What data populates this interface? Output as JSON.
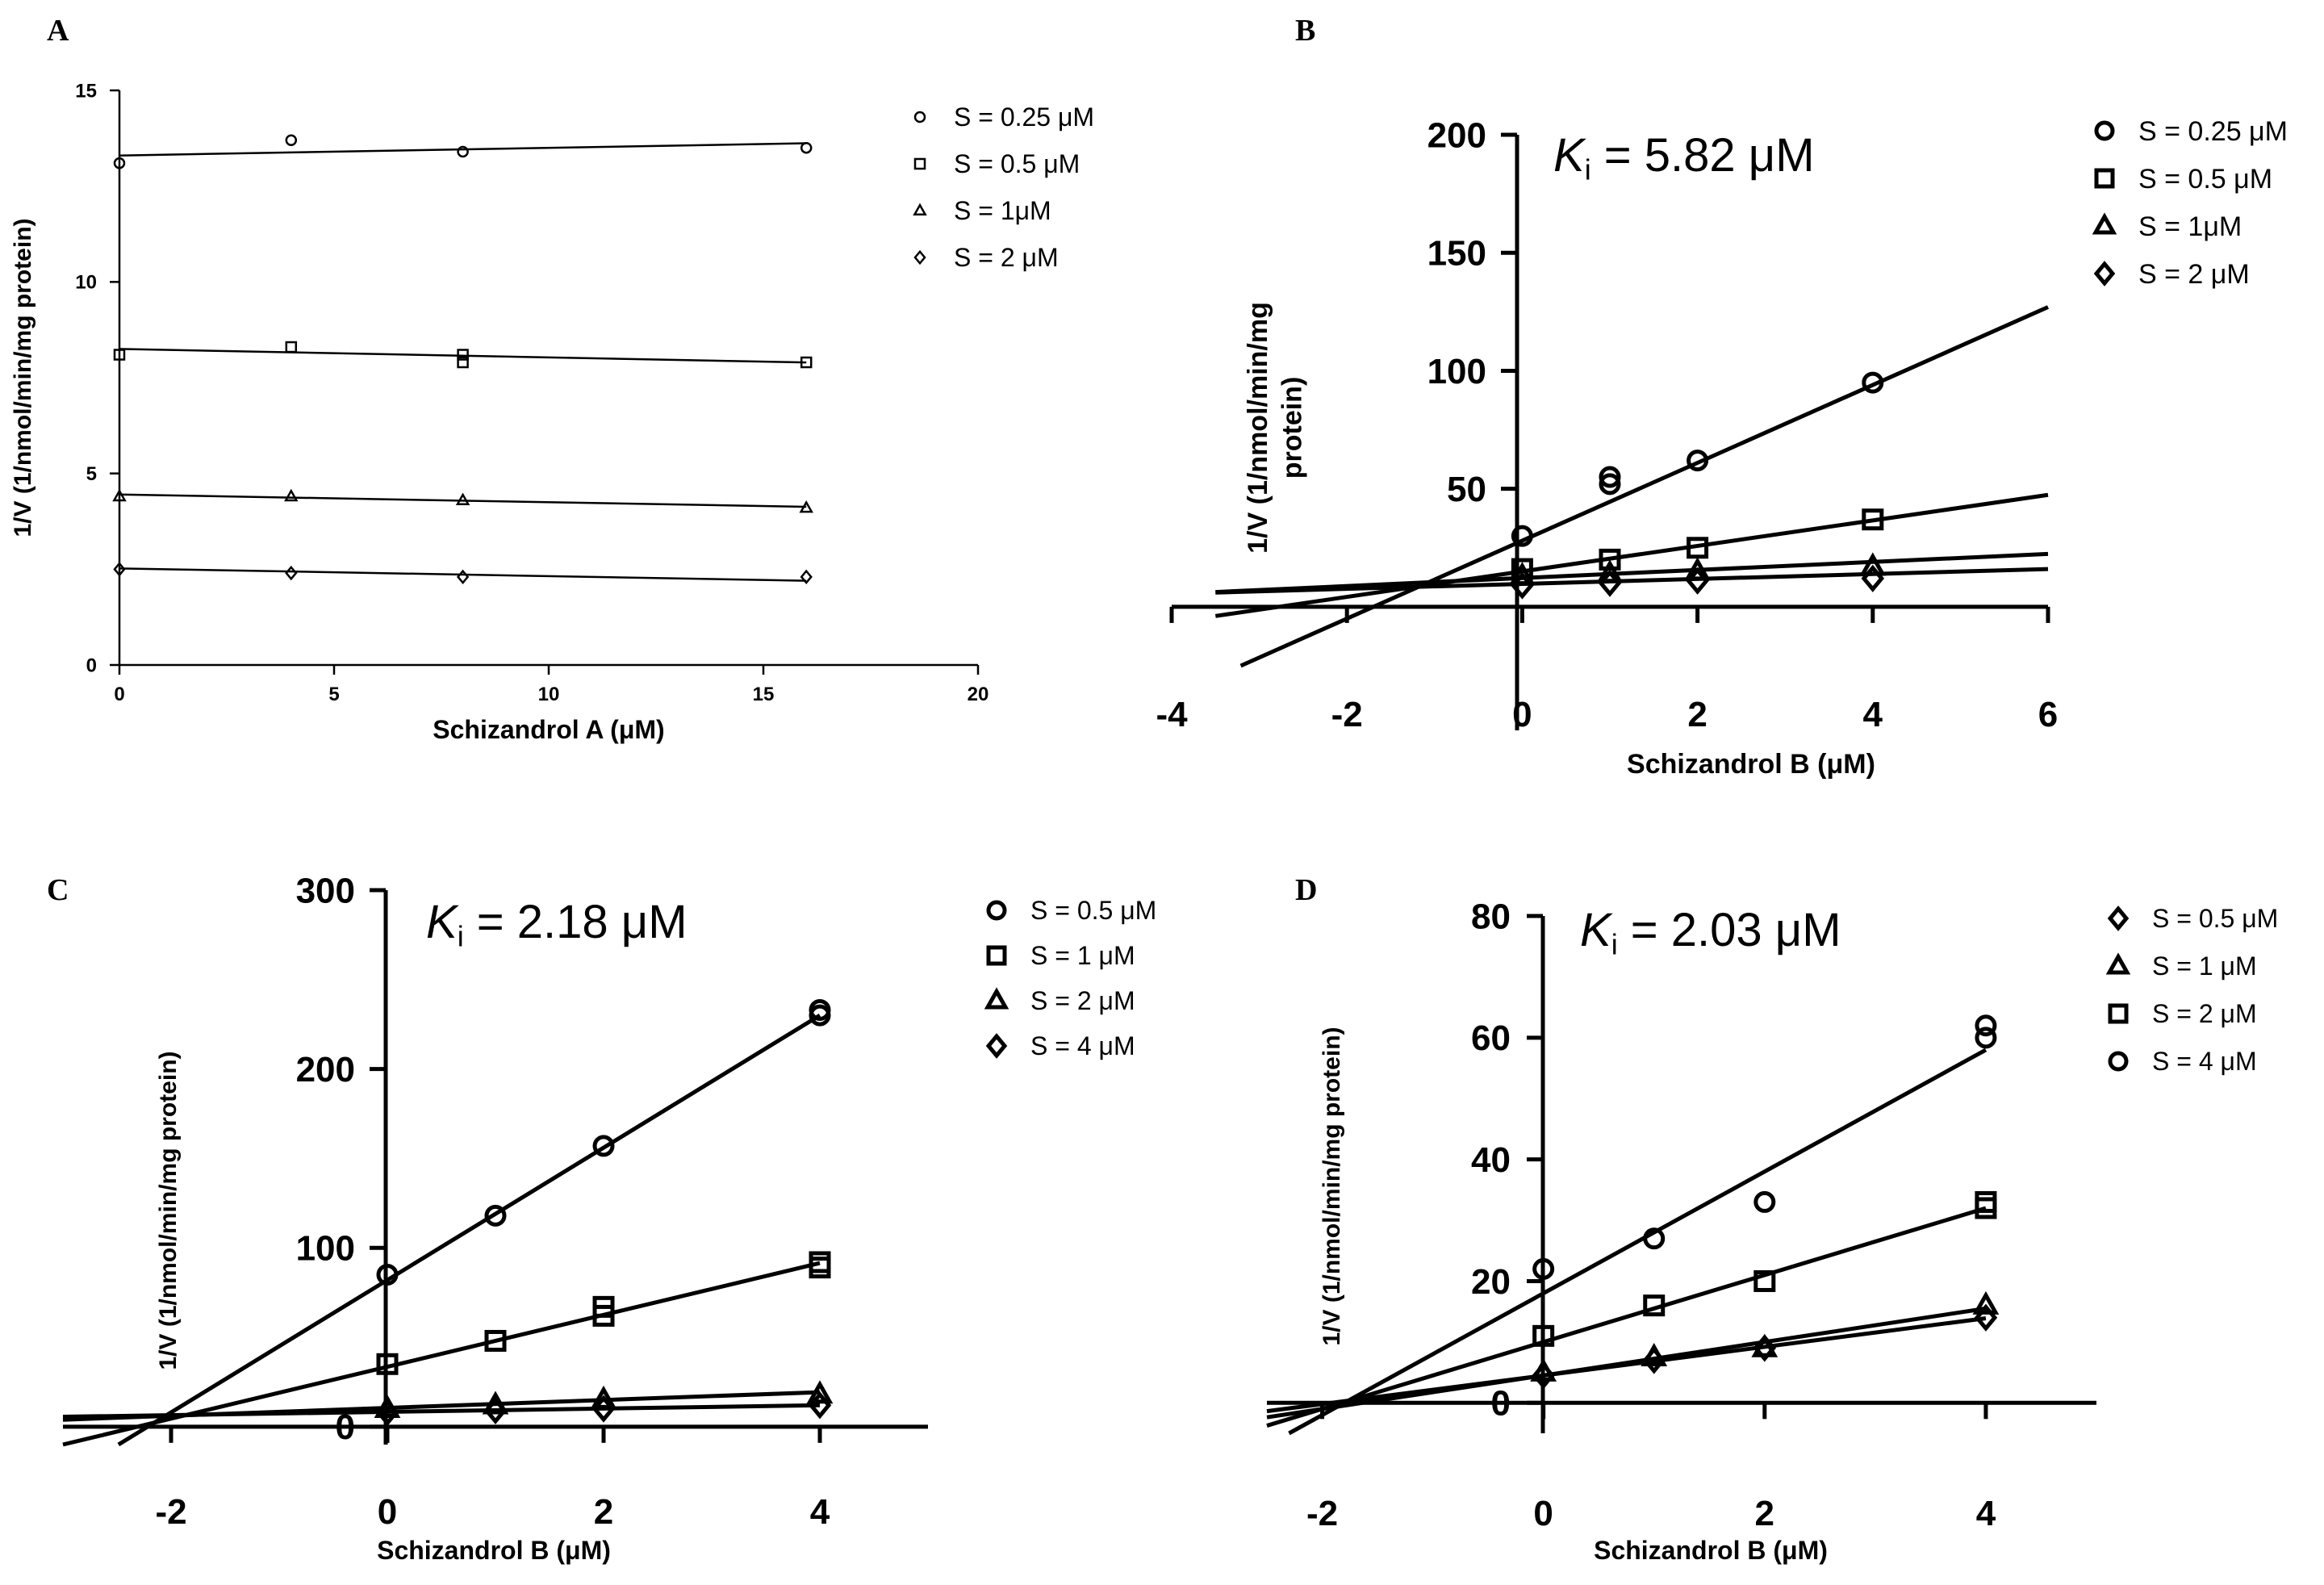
{
  "chart_data": [
    {
      "panel": "A",
      "type": "scatter",
      "xlabel": "Schizandrol A (μM)",
      "ylabel": "1/V (1/nmol/min/mg protein)",
      "xlim": [
        0,
        20
      ],
      "ylim": [
        0,
        15
      ],
      "xticks": [
        0,
        5,
        10,
        15,
        20
      ],
      "yticks": [
        0,
        5,
        10,
        15
      ],
      "annotation_parts": [],
      "series": [
        {
          "name": "S = 0.25 μM",
          "marker": "circle",
          "x": [
            0,
            4,
            8,
            16
          ],
          "y": [
            13.1,
            13.7,
            13.4,
            13.5
          ],
          "fit": [
            13.3,
            0.02
          ]
        },
        {
          "name": "S = 0.5 μM",
          "marker": "square",
          "x": [
            0,
            4,
            8,
            8,
            16
          ],
          "y": [
            8.1,
            8.3,
            8.1,
            7.9,
            7.9
          ],
          "fit": [
            8.25,
            -0.022
          ]
        },
        {
          "name": "S = 1μM",
          "marker": "triangle",
          "x": [
            0,
            4,
            8,
            16
          ],
          "y": [
            4.4,
            4.4,
            4.3,
            4.1
          ],
          "fit": [
            4.45,
            -0.02
          ]
        },
        {
          "name": "S = 2 μM",
          "marker": "diamond",
          "x": [
            0,
            4,
            8,
            16
          ],
          "y": [
            2.5,
            2.4,
            2.3,
            2.3
          ],
          "fit": [
            2.52,
            -0.02
          ]
        }
      ]
    },
    {
      "panel": "B",
      "type": "scatter",
      "xlabel": "Schizandrol B (μM)",
      "ylabel": "1/V (1/nmol/min/mg protein)",
      "ylabel_lines": [
        "1/V (1/nmol/min/mg",
        "protein)"
      ],
      "xlim": [
        -4,
        6
      ],
      "ylim": [
        -25,
        200
      ],
      "xticks": [
        -4,
        -2,
        0,
        2,
        4,
        6
      ],
      "yticks": [
        50,
        100,
        150,
        200
      ],
      "annotation_parts": [
        "K",
        "i",
        " = 5.82 μM"
      ],
      "series": [
        {
          "name": "S = 0.25 μM",
          "marker": "circle",
          "x": [
            0,
            1,
            1,
            2,
            4
          ],
          "y": [
            30,
            52,
            55,
            62,
            95
          ],
          "fit": [
            28,
            16.5
          ]
        },
        {
          "name": "S = 0.5 μM",
          "marker": "square",
          "x": [
            0,
            1,
            2,
            4
          ],
          "y": [
            16,
            20,
            25,
            37
          ],
          "fit": [
            15,
            5.4
          ]
        },
        {
          "name": "S = 1μM",
          "marker": "triangle",
          "x": [
            0,
            1,
            2,
            4
          ],
          "y": [
            13,
            14,
            15,
            17
          ],
          "fit": [
            12.2,
            1.7
          ]
        },
        {
          "name": "S = 2 μM",
          "marker": "diamond",
          "x": [
            0,
            1,
            2,
            4
          ],
          "y": [
            9,
            10,
            11,
            12
          ],
          "fit": [
            9.7,
            1.05
          ]
        }
      ]
    },
    {
      "panel": "C",
      "type": "scatter",
      "xlabel": "Schizandrol B (μM)",
      "ylabel": "1/V (1/nmol/min/mg protein)",
      "xlim": [
        -3,
        5
      ],
      "ylim": [
        -10,
        300
      ],
      "xticks": [
        -2,
        0,
        2,
        4
      ],
      "yticks": [
        0,
        100,
        200,
        300
      ],
      "annotation_parts": [
        "K",
        "i",
        " = 2.18 μM"
      ],
      "series": [
        {
          "name": "S = 0.5 μM",
          "marker": "circle",
          "x": [
            0,
            1,
            2,
            4,
            4
          ],
          "y": [
            85,
            118,
            157,
            230,
            233
          ],
          "fit": [
            82,
            37
          ]
        },
        {
          "name": "S = 1 μM",
          "marker": "square",
          "x": [
            0,
            1,
            2,
            2,
            4,
            4
          ],
          "y": [
            35,
            48,
            62,
            67,
            89,
            92
          ],
          "fit": [
            33.5,
            14.5
          ]
        },
        {
          "name": "S = 2 μM",
          "marker": "triangle",
          "x": [
            0,
            1,
            2,
            4
          ],
          "y": [
            10,
            12,
            15,
            18
          ],
          "fit": [
            10.5,
            2.2
          ]
        },
        {
          "name": "S = 4 μM",
          "marker": "diamond",
          "x": [
            0,
            1,
            2,
            4
          ],
          "y": [
            8,
            9,
            10,
            12
          ],
          "fit": [
            8.3,
            0.92
          ]
        }
      ]
    },
    {
      "panel": "D",
      "type": "scatter",
      "xlabel": "Schizandrol B (μM)",
      "ylabel": "1/V (1/nmol/min/mg protein)",
      "xlim": [
        -2.5,
        5
      ],
      "ylim": [
        -5,
        80
      ],
      "xticks": [
        -2,
        0,
        2,
        4
      ],
      "yticks": [
        0,
        20,
        40,
        60,
        80
      ],
      "annotation_parts": [
        "K",
        "i",
        " = 2.03 μM"
      ],
      "series": [
        {
          "name": "S = 0.5 μM",
          "marker": "diamond",
          "x": [
            0,
            1,
            2,
            4
          ],
          "y": [
            4.5,
            7,
            9,
            14
          ],
          "fit": [
            4.5,
            2.35
          ]
        },
        {
          "name": "S = 1 μM",
          "marker": "triangle",
          "x": [
            0,
            1,
            2,
            4
          ],
          "y": [
            5,
            7.5,
            9,
            16
          ],
          "fit": [
            4.5,
            2.75
          ]
        },
        {
          "name": "S = 2 μM",
          "marker": "square",
          "x": [
            0,
            1,
            2,
            4,
            4
          ],
          "y": [
            11,
            16,
            20,
            32,
            33
          ],
          "fit": [
            10,
            5.5
          ]
        },
        {
          "name": "S = 4 μM",
          "marker": "circle",
          "x": [
            0,
            1,
            2,
            4,
            4
          ],
          "y": [
            22,
            27,
            33,
            60,
            62
          ],
          "fit": [
            18,
            10
          ]
        }
      ]
    }
  ]
}
